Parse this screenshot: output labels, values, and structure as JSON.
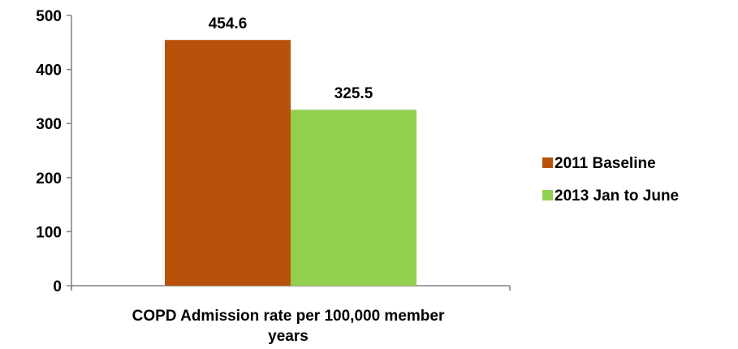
{
  "chart_data": {
    "type": "bar",
    "categories": [
      "COPD Admission rate per 100,000 member years"
    ],
    "category_label_lines": [
      "COPD Admission rate per 100,000 member",
      "years"
    ],
    "series": [
      {
        "name": "2011 Baseline",
        "values": [
          454.6
        ],
        "value_labels": [
          "454.6"
        ],
        "color": "#B8520A"
      },
      {
        "name": "2013 Jan to June",
        "values": [
          325.5
        ],
        "value_labels": [
          "325.5"
        ],
        "color": "#92D050"
      }
    ],
    "ylim": [
      0,
      500
    ],
    "yticks": [
      0,
      100,
      200,
      300,
      400,
      500
    ],
    "ytick_labels": [
      "0",
      "100",
      "200",
      "300",
      "400",
      "500"
    ],
    "grid": false,
    "legend_position": "right",
    "title": "",
    "xlabel": "",
    "ylabel": ""
  }
}
